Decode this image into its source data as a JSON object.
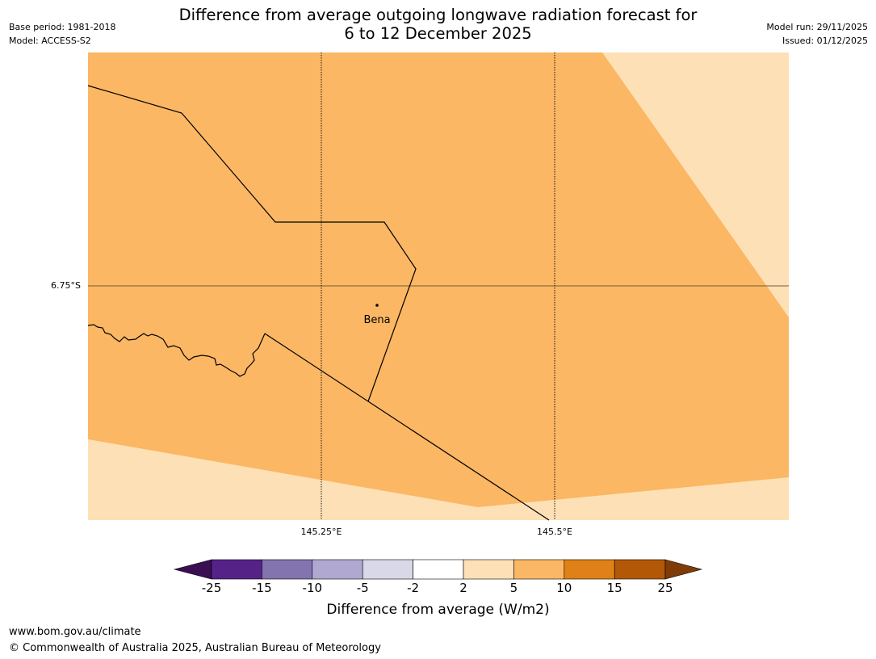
{
  "header": {
    "title_line1": "Difference from average outgoing longwave radiation forecast for",
    "title_line2": "6 to 12 December 2025",
    "base_period": "Base period: 1981-2018",
    "model": "Model: ACCESS-S2",
    "model_run": "Model run: 29/11/2025",
    "issued": "Issued: 01/12/2025"
  },
  "map": {
    "lat_labels": [
      "6.75°S"
    ],
    "lon_labels": [
      "145.25°E",
      "145.5°E"
    ],
    "places": [
      {
        "name": "Bena"
      }
    ],
    "field_colors": {
      "light": "#fde0b6",
      "main": "#fbb763",
      "grid_line": "#7a5a3a",
      "border": "#000000"
    }
  },
  "colorbar": {
    "label": "Difference from average (W/m2)",
    "ticks": [
      "-25",
      "-15",
      "-10",
      "-5",
      "-2",
      "2",
      "5",
      "10",
      "15",
      "25"
    ],
    "colors": [
      "#3b0d52",
      "#552288",
      "#8373af",
      "#b1a8d2",
      "#d8d8e8",
      "#ffffff",
      "#fde0b6",
      "#fbb763",
      "#df8116",
      "#b35806",
      "#7f3b08"
    ]
  },
  "footer": {
    "website": "www.bom.gov.au/climate",
    "copyright": "© Commonwealth of Australia 2025, Australian Bureau of Meteorology"
  }
}
